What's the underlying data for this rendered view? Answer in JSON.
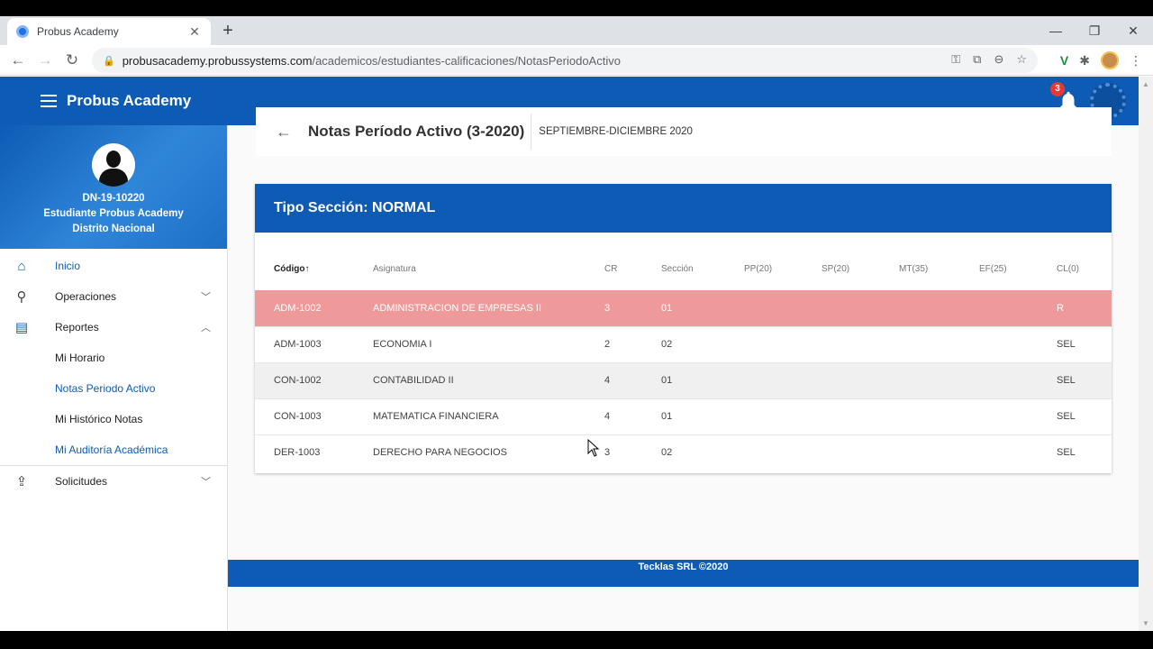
{
  "browser": {
    "tab_title": "Probus Academy",
    "tab_close": "✕",
    "new_tab": "+",
    "url_host": "probusacademy.probussystems.com",
    "url_path": "/academicos/estudiantes-calificaciones/NotasPeriodoActivo",
    "window_controls": {
      "minimize": "—",
      "restore": "❐",
      "close": "✕"
    }
  },
  "appbar": {
    "title": "Probus Academy",
    "notification_count": "3"
  },
  "profile": {
    "id": "DN-19-10220",
    "role": "Estudiante Probus Academy",
    "location": "Distrito Nacional"
  },
  "sidebar": {
    "inicio": "Inicio",
    "operaciones": "Operaciones",
    "reportes": "Reportes",
    "reportes_items": [
      "Mi Horario",
      "Notas Periodo Activo",
      "Mi Histórico Notas",
      "Mi Auditoría Académica"
    ],
    "solicitudes": "Solicitudes"
  },
  "page": {
    "title": "Notas Período Activo (3-2020)",
    "period": "SEPTIEMBRE-DICIEMBRE 2020"
  },
  "section": {
    "title": "Tipo Sección: NORMAL",
    "columns": [
      "Código",
      "Asignatura",
      "CR",
      "Sección",
      "PP(20)",
      "SP(20)",
      "MT(35)",
      "EF(25)",
      "CL(0)"
    ],
    "sort_indicator": "↑",
    "rows": [
      {
        "codigo": "ADM-1002",
        "asignatura": "ADMINISTRACION DE EMPRESAS II",
        "cr": "3",
        "seccion": "01",
        "pp": "",
        "sp": "",
        "mt": "",
        "ef": "",
        "cl": "R"
      },
      {
        "codigo": "ADM-1003",
        "asignatura": "ECONOMIA I",
        "cr": "2",
        "seccion": "02",
        "pp": "",
        "sp": "",
        "mt": "",
        "ef": "",
        "cl": "SEL"
      },
      {
        "codigo": "CON-1002",
        "asignatura": "CONTABILIDAD II",
        "cr": "4",
        "seccion": "01",
        "pp": "",
        "sp": "",
        "mt": "",
        "ef": "",
        "cl": "SEL"
      },
      {
        "codigo": "CON-1003",
        "asignatura": "MATEMATICA FINANCIERA",
        "cr": "4",
        "seccion": "01",
        "pp": "",
        "sp": "",
        "mt": "",
        "ef": "",
        "cl": "SEL"
      },
      {
        "codigo": "DER-1003",
        "asignatura": "DERECHO PARA NEGOCIOS",
        "cr": "3",
        "seccion": "02",
        "pp": "",
        "sp": "",
        "mt": "",
        "ef": "",
        "cl": "SEL"
      }
    ]
  },
  "footer": {
    "text": "Tecklas SRL ©2020"
  },
  "colors": {
    "primary": "#0d5bb5",
    "failed_row": "#ef9a9a"
  }
}
